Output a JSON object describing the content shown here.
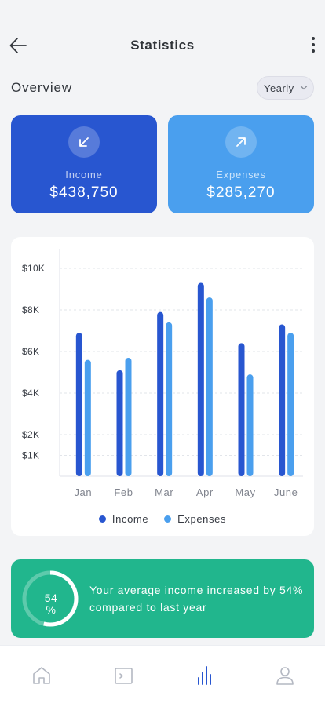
{
  "header": {
    "title": "Statistics"
  },
  "overview": {
    "label": "Overview",
    "period": "Yearly"
  },
  "cards": {
    "income": {
      "label": "Income",
      "value": "$438,750",
      "icon": "arrow-down-left-icon"
    },
    "expenses": {
      "label": "Expenses",
      "value": "$285,270",
      "icon": "arrow-up-right-icon"
    }
  },
  "chart_data": {
    "type": "bar",
    "categories": [
      "Jan",
      "Feb",
      "Mar",
      "Apr",
      "May",
      "June"
    ],
    "series": [
      {
        "name": "Income",
        "values": [
          6900,
          5100,
          7900,
          9300,
          6400,
          7300
        ],
        "color": "#2856d0"
      },
      {
        "name": "Expenses",
        "values": [
          5600,
          5700,
          7400,
          8600,
          4900,
          6900
        ],
        "color": "#4a9fee"
      }
    ],
    "y_ticks": [
      {
        "value": 1000,
        "label": "$1K"
      },
      {
        "value": 2000,
        "label": "$2K"
      },
      {
        "value": 4000,
        "label": "$4K"
      },
      {
        "value": 6000,
        "label": "$6K"
      },
      {
        "value": 8000,
        "label": "$8K"
      },
      {
        "value": 10000,
        "label": "$10K"
      }
    ],
    "ylim": [
      0,
      10000
    ],
    "grid": true,
    "legend": "bottom"
  },
  "insight": {
    "percent": 54,
    "ring_text": "54\n%",
    "text": "Your average income increased by 54% compared to last year"
  },
  "nav": {
    "items": [
      {
        "name": "home-icon",
        "active": false
      },
      {
        "name": "wallet-icon",
        "active": false
      },
      {
        "name": "statistics-icon",
        "active": true
      },
      {
        "name": "profile-icon",
        "active": false
      }
    ]
  },
  "colors": {
    "income": "#2856d0",
    "expenses": "#4a9fee",
    "insight_bg": "#21b68d",
    "nav_inactive": "#b4b8c2",
    "nav_active": "#2856d0"
  }
}
